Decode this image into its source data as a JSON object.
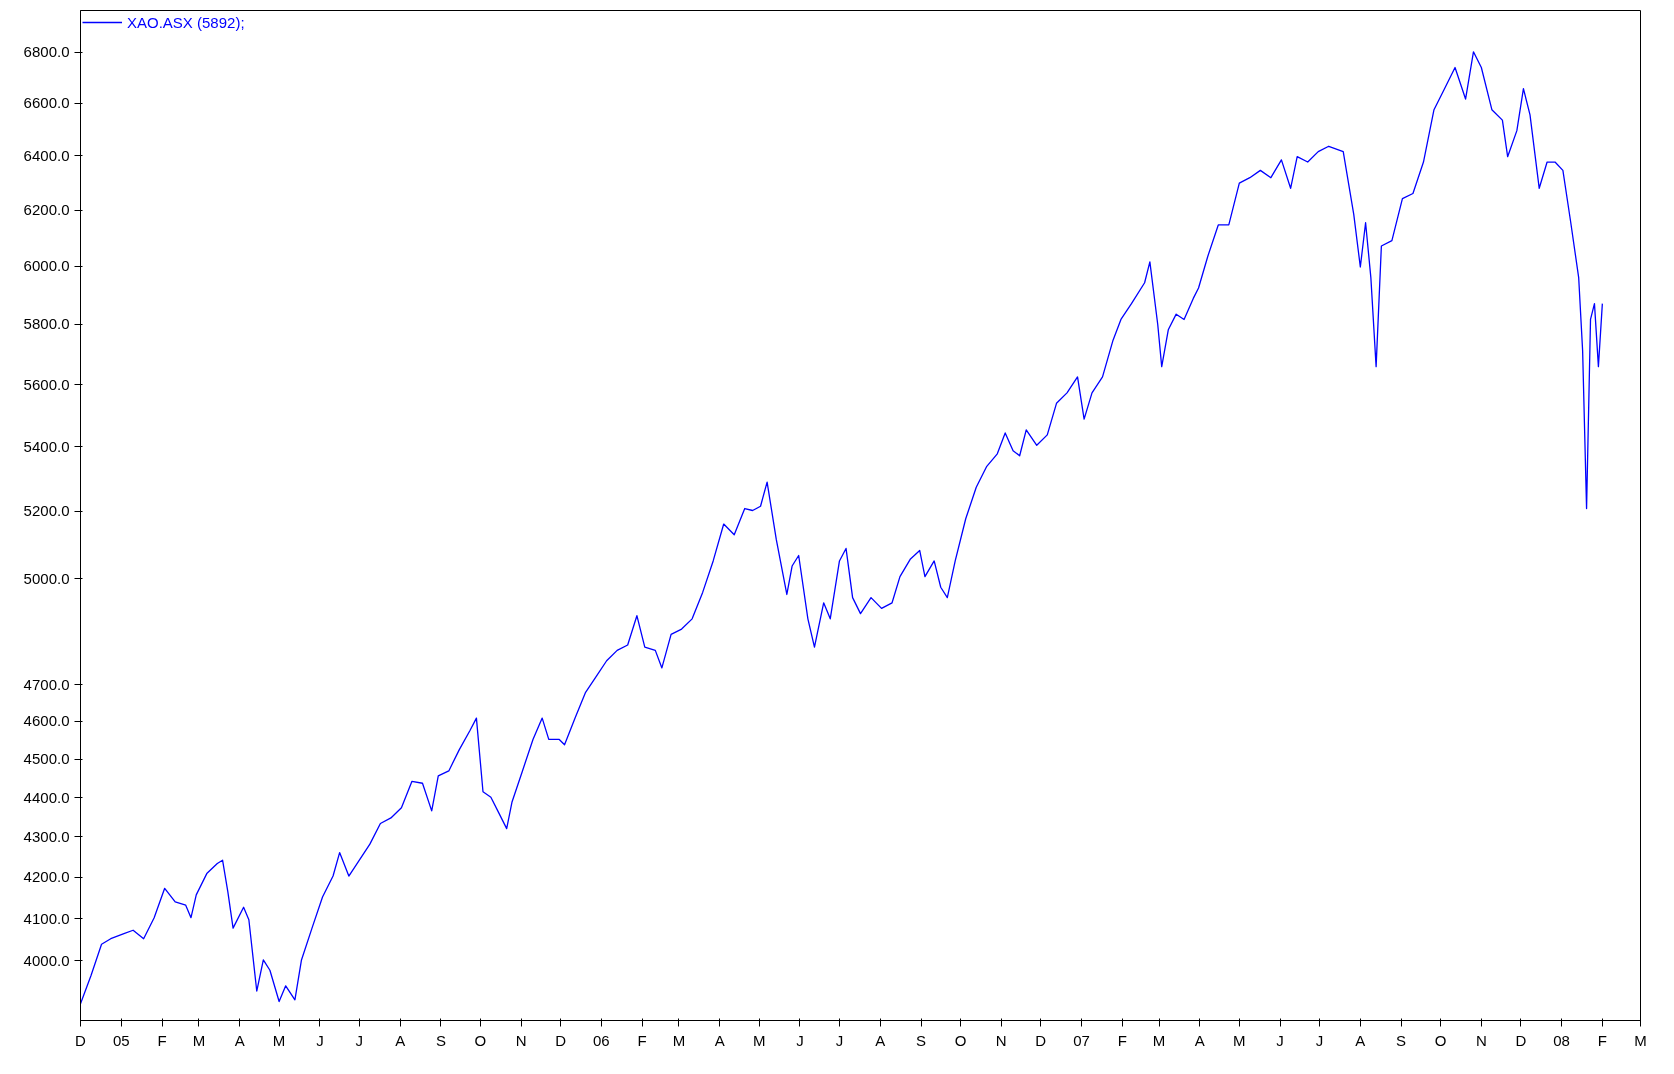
{
  "chart_data": {
    "type": "line",
    "legend": "top left",
    "grid": false,
    "ylim": [
      3863,
      6967
    ],
    "log": "y",
    "yticks": [
      {
        "value": 4000,
        "label": "4000.0"
      },
      {
        "value": 4100,
        "label": "4100.0"
      },
      {
        "value": 4200,
        "label": "4200.0"
      },
      {
        "value": 4300,
        "label": "4300.0"
      },
      {
        "value": 4400,
        "label": "4400.0"
      },
      {
        "value": 4500,
        "label": "4500.0"
      },
      {
        "value": 4600,
        "label": "4600.0"
      },
      {
        "value": 4700,
        "label": "4700.0"
      },
      {
        "value": 5000,
        "label": "5000.0"
      },
      {
        "value": 5200,
        "label": "5200.0"
      },
      {
        "value": 5400,
        "label": "5400.0"
      },
      {
        "value": 5600,
        "label": "5600.0"
      },
      {
        "value": 5800,
        "label": "5800.0"
      },
      {
        "value": 6000,
        "label": "6000.0"
      },
      {
        "value": 6200,
        "label": "6200.0"
      },
      {
        "value": 6400,
        "label": "6400.0"
      },
      {
        "value": 6600,
        "label": "6600.0"
      },
      {
        "value": 6800,
        "label": "6800.0"
      }
    ],
    "xlim": [
      "2004-12-01",
      "2008-03-01"
    ],
    "xticks": [
      {
        "value": "2004-12-01",
        "label": "D"
      },
      {
        "value": "2005-01-01",
        "label": "05"
      },
      {
        "value": "2005-02-01",
        "label": "F"
      },
      {
        "value": "2005-03-01",
        "label": "M"
      },
      {
        "value": "2005-04-01",
        "label": "A"
      },
      {
        "value": "2005-05-01",
        "label": "M"
      },
      {
        "value": "2005-06-01",
        "label": "J"
      },
      {
        "value": "2005-07-01",
        "label": "J"
      },
      {
        "value": "2005-08-01",
        "label": "A"
      },
      {
        "value": "2005-09-01",
        "label": "S"
      },
      {
        "value": "2005-10-01",
        "label": "O"
      },
      {
        "value": "2005-11-01",
        "label": "N"
      },
      {
        "value": "2005-12-01",
        "label": "D"
      },
      {
        "value": "2006-01-01",
        "label": "06"
      },
      {
        "value": "2006-02-01",
        "label": "F"
      },
      {
        "value": "2006-03-01",
        "label": "M"
      },
      {
        "value": "2006-04-01",
        "label": "A"
      },
      {
        "value": "2006-05-01",
        "label": "M"
      },
      {
        "value": "2006-06-01",
        "label": "J"
      },
      {
        "value": "2006-07-01",
        "label": "J"
      },
      {
        "value": "2006-08-01",
        "label": "A"
      },
      {
        "value": "2006-09-01",
        "label": "S"
      },
      {
        "value": "2006-10-01",
        "label": "O"
      },
      {
        "value": "2006-11-01",
        "label": "N"
      },
      {
        "value": "2006-12-01",
        "label": "D"
      },
      {
        "value": "2007-01-01",
        "label": "07"
      },
      {
        "value": "2007-02-01",
        "label": "F"
      },
      {
        "value": "2007-03-01",
        "label": "M"
      },
      {
        "value": "2007-04-01",
        "label": "A"
      },
      {
        "value": "2007-05-01",
        "label": "M"
      },
      {
        "value": "2007-06-01",
        "label": "J"
      },
      {
        "value": "2007-07-01",
        "label": "J"
      },
      {
        "value": "2007-08-01",
        "label": "A"
      },
      {
        "value": "2007-09-01",
        "label": "S"
      },
      {
        "value": "2007-10-01",
        "label": "O"
      },
      {
        "value": "2007-11-01",
        "label": "N"
      },
      {
        "value": "2007-12-01",
        "label": "D"
      },
      {
        "value": "2008-01-01",
        "label": "08"
      },
      {
        "value": "2008-02-01",
        "label": "F"
      },
      {
        "value": "2008-03-01",
        "label": "M"
      }
    ],
    "series": [
      {
        "name": "XAO.ASX (5892);",
        "color": "#0000ff",
        "x": [
          "2004-12-01",
          "2004-12-09",
          "2004-12-17",
          "2004-12-24",
          "2005-01-03",
          "2005-01-10",
          "2005-01-18",
          "2005-01-26",
          "2005-02-03",
          "2005-02-11",
          "2005-02-19",
          "2005-02-23",
          "2005-02-27",
          "2005-03-07",
          "2005-03-15",
          "2005-03-19",
          "2005-03-23",
          "2005-03-27",
          "2005-04-04",
          "2005-04-08",
          "2005-04-14",
          "2005-04-19",
          "2005-04-24",
          "2005-05-01",
          "2005-05-06",
          "2005-05-13",
          "2005-05-18",
          "2005-05-26",
          "2005-06-03",
          "2005-06-11",
          "2005-06-16",
          "2005-06-23",
          "2005-07-01",
          "2005-07-09",
          "2005-07-17",
          "2005-07-25",
          "2005-08-02",
          "2005-08-10",
          "2005-08-18",
          "2005-08-25",
          "2005-08-30",
          "2005-09-07",
          "2005-09-15",
          "2005-09-23",
          "2005-09-28",
          "2005-10-03",
          "2005-10-09",
          "2005-10-15",
          "2005-10-21",
          "2005-10-25",
          "2005-11-02",
          "2005-11-10",
          "2005-11-17",
          "2005-11-22",
          "2005-11-30",
          "2005-12-04",
          "2005-12-12",
          "2005-12-20",
          "2005-12-28",
          "2006-01-05",
          "2006-01-13",
          "2006-01-21",
          "2006-01-28",
          "2006-02-03",
          "2006-02-11",
          "2006-02-16",
          "2006-02-23",
          "2006-03-03",
          "2006-03-11",
          "2006-03-19",
          "2006-03-27",
          "2006-04-04",
          "2006-04-12",
          "2006-04-20",
          "2006-04-26",
          "2006-05-02",
          "2006-05-07",
          "2006-05-14",
          "2006-05-22",
          "2006-05-26",
          "2006-05-31",
          "2006-06-07",
          "2006-06-12",
          "2006-06-19",
          "2006-06-24",
          "2006-07-01",
          "2006-07-06",
          "2006-07-11",
          "2006-07-17",
          "2006-07-25",
          "2006-08-02",
          "2006-08-10",
          "2006-08-16",
          "2006-08-24",
          "2006-08-31",
          "2006-09-04",
          "2006-09-11",
          "2006-09-16",
          "2006-09-21",
          "2006-09-27",
          "2006-10-05",
          "2006-10-13",
          "2006-10-21",
          "2006-10-29",
          "2006-11-04",
          "2006-11-10",
          "2006-11-15",
          "2006-11-20",
          "2006-11-28",
          "2006-12-06",
          "2006-12-13",
          "2006-12-21",
          "2006-12-29",
          "2007-01-03",
          "2007-01-09",
          "2007-01-17",
          "2007-01-25",
          "2007-01-31",
          "2007-02-08",
          "2007-02-18",
          "2007-02-22",
          "2007-02-28",
          "2007-03-03",
          "2007-03-08",
          "2007-03-14",
          "2007-03-20",
          "2007-03-27",
          "2007-03-31",
          "2007-04-07",
          "2007-04-15",
          "2007-04-23",
          "2007-05-01",
          "2007-05-09",
          "2007-05-17",
          "2007-05-25",
          "2007-06-02",
          "2007-06-09",
          "2007-06-14",
          "2007-06-22",
          "2007-06-30",
          "2007-07-08",
          "2007-07-19",
          "2007-07-27",
          "2007-08-01",
          "2007-08-05",
          "2007-08-09",
          "2007-08-13",
          "2007-08-17",
          "2007-08-25",
          "2007-09-02",
          "2007-09-10",
          "2007-09-18",
          "2007-09-26",
          "2007-10-04",
          "2007-10-12",
          "2007-10-20",
          "2007-10-26",
          "2007-11-01",
          "2007-11-09",
          "2007-11-17",
          "2007-11-21",
          "2007-11-28",
          "2007-12-03",
          "2007-12-08",
          "2007-12-15",
          "2007-12-21",
          "2007-12-27",
          "2008-01-02",
          "2008-01-08",
          "2008-01-14",
          "2008-01-17",
          "2008-01-20",
          "2008-01-23",
          "2008-01-26",
          "2008-01-29",
          "2008-02-01"
        ],
        "values": [
          3901,
          3966,
          4039,
          4052,
          4064,
          4072,
          4052,
          4102,
          4173,
          4140,
          4132,
          4102,
          4157,
          4209,
          4234,
          4242,
          4165,
          4077,
          4127,
          4097,
          3930,
          4002,
          3978,
          3906,
          3942,
          3910,
          4002,
          4077,
          4152,
          4203,
          4261,
          4203,
          4242,
          4282,
          4334,
          4348,
          4374,
          4442,
          4437,
          4366,
          4456,
          4469,
          4525,
          4575,
          4609,
          4415,
          4401,
          4361,
          4321,
          4388,
          4469,
          4552,
          4609,
          4552,
          4552,
          4538,
          4609,
          4679,
          4722,
          4766,
          4795,
          4810,
          4893,
          4804,
          4795,
          4746,
          4840,
          4855,
          4884,
          4960,
          5052,
          5162,
          5130,
          5209,
          5203,
          5216,
          5290,
          5115,
          4954,
          5037,
          5068,
          4884,
          4804,
          4930,
          4884,
          5052,
          5089,
          4945,
          4899,
          4945,
          4914,
          4930,
          5006,
          5058,
          5083,
          5006,
          5052,
          4975,
          4945,
          5052,
          5178,
          5274,
          5339,
          5378,
          5444,
          5388,
          5372,
          5454,
          5405,
          5438,
          5539,
          5573,
          5625,
          5488,
          5573,
          5625,
          5747,
          5817,
          5871,
          5943,
          6016,
          5799,
          5659,
          5782,
          5835,
          5817,
          5889,
          5925,
          6035,
          6147,
          6147,
          6299,
          6319,
          6346,
          6319,
          6385,
          6280,
          6397,
          6377,
          6416,
          6436,
          6416,
          6185,
          5998,
          6155,
          5961,
          5659,
          6072,
          6091,
          6242,
          6261,
          6377,
          6575,
          6656,
          6739,
          6616,
          6801,
          6739,
          6575,
          6535,
          6397,
          6495,
          6656,
          6555,
          6280,
          6377,
          6377,
          6346,
          6155,
          5961,
          5712,
          5209,
          5817,
          5871,
          5659,
          5871
        ]
      }
    ]
  }
}
